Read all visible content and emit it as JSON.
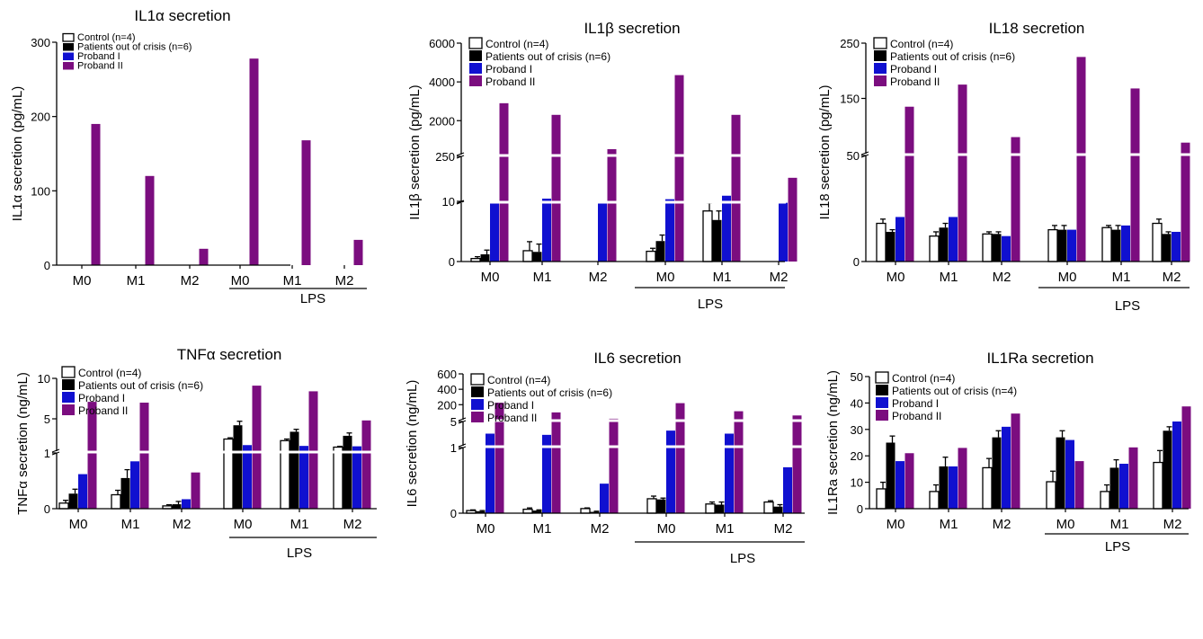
{
  "figure": {
    "colors": {
      "Control": "#ffffff",
      "Patients": "#000000",
      "Proband I": "#1010d0",
      "Proband II": "#7b0d7f"
    }
  },
  "chart_data": [
    {
      "id": "il1a",
      "type": "bar",
      "title": "IL1α secretion",
      "ylabel": "IL1α secretion (pg/mL)",
      "ylim": [
        0,
        300
      ],
      "yticks": [
        0,
        100,
        200,
        300
      ],
      "ytick_labels": [
        "0",
        "100",
        "200",
        "300"
      ],
      "categories": [
        "M0",
        "M1",
        "M2",
        "M0",
        "M1",
        "M2"
      ],
      "group_label": "LPS",
      "legend": [
        "Control (n=4)",
        "Patients out of crisis (n=6)",
        "Proband I",
        "Proband II"
      ],
      "series": [
        {
          "name": "Control (n=4)",
          "values": [
            0,
            0,
            0,
            0,
            0,
            0
          ],
          "errors": [
            0,
            0,
            0,
            0,
            0,
            0
          ]
        },
        {
          "name": "Patients out of crisis (n=6)",
          "values": [
            0,
            0,
            0,
            0,
            0,
            0
          ],
          "errors": [
            0,
            0,
            0,
            0,
            0,
            0
          ]
        },
        {
          "name": "Proband I",
          "values": [
            0,
            0,
            0,
            0,
            0,
            0
          ]
        },
        {
          "name": "Proband II",
          "values": [
            190,
            120,
            22,
            278,
            168,
            34
          ]
        }
      ]
    },
    {
      "id": "il1b",
      "type": "bar",
      "title": "IL1β secretion",
      "ylabel": "IL1β secretion (pg/mL)",
      "axis_breaks": [
        10,
        250
      ],
      "segments": [
        [
          0,
          10
        ],
        [
          10,
          250
        ],
        [
          250,
          6000
        ]
      ],
      "yticks": [
        0,
        10,
        250,
        2000,
        4000,
        6000
      ],
      "ytick_labels": [
        "0",
        "10",
        "250",
        "2000",
        "4000",
        "6000"
      ],
      "categories": [
        "M0",
        "M1",
        "M2",
        "M0",
        "M1",
        "M2"
      ],
      "group_label": "LPS",
      "legend": [
        "Control (n=4)",
        "Patients out of crisis (n=6)",
        "Proband I",
        "Proband II"
      ],
      "series": [
        {
          "name": "Control (n=4)",
          "values": [
            0.5,
            1.8,
            0,
            1.7,
            8.4,
            0
          ],
          "errors": [
            0.3,
            1.5,
            0,
            0.5,
            1.8,
            0
          ]
        },
        {
          "name": "Patients out of crisis (n=6)",
          "values": [
            1.2,
            1.6,
            0,
            3.4,
            6.9,
            0
          ],
          "errors": [
            0.7,
            1.3,
            0,
            1.0,
            1.5,
            0
          ]
        },
        {
          "name": "Proband I",
          "values": [
            14,
            33,
            12,
            30,
            48,
            11.5
          ]
        },
        {
          "name": "Proband II",
          "values": [
            2900,
            2300,
            530,
            4350,
            2300,
            140
          ]
        }
      ]
    },
    {
      "id": "il18",
      "type": "bar",
      "title": "IL18 secretion",
      "ylabel": "IL18 secretion (pg/mL)",
      "axis_breaks": [
        50
      ],
      "segments": [
        [
          0,
          50
        ],
        [
          50,
          250
        ]
      ],
      "yticks": [
        0,
        50,
        150,
        250
      ],
      "ytick_labels": [
        "0",
        "50",
        "150",
        "250"
      ],
      "categories": [
        "M0",
        "M1",
        "M2",
        "M0",
        "M1",
        "M2"
      ],
      "group_label": "LPS",
      "legend": [
        "Control (n=4)",
        "Patients out of crisis (n=6)",
        "Proband I",
        "Proband II"
      ],
      "series": [
        {
          "name": "Control (n=4)",
          "values": [
            18,
            12,
            13,
            15,
            16,
            18
          ],
          "errors": [
            2,
            2,
            1,
            2,
            1,
            2
          ]
        },
        {
          "name": "Patients out of crisis (n=6)",
          "values": [
            14,
            16,
            13,
            15,
            15,
            13
          ],
          "errors": [
            1,
            2,
            1,
            2,
            2,
            1
          ]
        },
        {
          "name": "Proband I",
          "values": [
            21,
            21,
            12,
            15,
            17,
            14
          ]
        },
        {
          "name": "Proband II",
          "values": [
            135,
            175,
            80,
            225,
            168,
            70
          ]
        }
      ]
    },
    {
      "id": "tnfa",
      "type": "bar",
      "title": "TNFα secretion",
      "ylabel": "TNFα secretion (ng/mL)",
      "axis_breaks": [
        1
      ],
      "segments": [
        [
          0,
          1
        ],
        [
          1,
          10
        ]
      ],
      "yticks": [
        0,
        1,
        5,
        10
      ],
      "ytick_labels": [
        "0",
        "1",
        "5",
        "10"
      ],
      "categories": [
        "M0",
        "M1",
        "M2",
        "M0",
        "M1",
        "M2"
      ],
      "group_label": "LPS",
      "legend": [
        "Control (n=4)",
        "Patients out of crisis (n=6)",
        "Proband I",
        "Proband II"
      ],
      "series": [
        {
          "name": "Control (n=4)",
          "values": [
            0.1,
            0.25,
            0.05,
            2.5,
            2.3,
            1.5
          ],
          "errors": [
            0.05,
            0.08,
            0.02,
            0.15,
            0.2,
            0.1
          ]
        },
        {
          "name": "Patients out of crisis (n=6)",
          "values": [
            0.27,
            0.55,
            0.08,
            4.2,
            3.4,
            2.9
          ],
          "errors": [
            0.08,
            0.15,
            0.05,
            0.5,
            0.3,
            0.35
          ]
        },
        {
          "name": "Proband I",
          "values": [
            0.62,
            0.85,
            0.17,
            1.75,
            1.65,
            1.6
          ]
        },
        {
          "name": "Proband II",
          "values": [
            7.1,
            7.0,
            0.65,
            9.1,
            8.4,
            4.8
          ]
        }
      ]
    },
    {
      "id": "il6",
      "type": "bar",
      "title": "IL6 secretion",
      "ylabel": "IL6 secretion (ng/mL)",
      "axis_breaks": [
        1,
        5
      ],
      "segments": [
        [
          0,
          1
        ],
        [
          1,
          5
        ],
        [
          5,
          600
        ]
      ],
      "yticks": [
        0,
        1,
        5,
        200,
        400,
        600
      ],
      "ytick_labels": [
        "0",
        "1",
        "5",
        "200",
        "400",
        "600"
      ],
      "categories": [
        "M0",
        "M1",
        "M2",
        "M0",
        "M1",
        "M2"
      ],
      "group_label": "LPS",
      "legend": [
        "Control (n=4)",
        "Patients out of crisis (n=6)",
        "Proband I",
        "Proband II"
      ],
      "series": [
        {
          "name": "Control (n=4)",
          "values": [
            0.04,
            0.06,
            0.07,
            0.22,
            0.14,
            0.17
          ],
          "errors": [
            0.01,
            0.02,
            0.01,
            0.04,
            0.03,
            0.02
          ]
        },
        {
          "name": "Patients out of crisis (n=6)",
          "values": [
            0.03,
            0.04,
            0.02,
            0.21,
            0.13,
            0.1
          ],
          "errors": [
            0.01,
            0.01,
            0.01,
            0.02,
            0.04,
            0.03
          ]
        },
        {
          "name": "Proband I",
          "values": [
            3.0,
            2.8,
            0.45,
            3.5,
            3.0,
            0.7
          ]
        },
        {
          "name": "Proband II",
          "values": [
            225,
            100,
            18,
            220,
            115,
            60
          ]
        }
      ]
    },
    {
      "id": "il1ra",
      "type": "bar",
      "title": "IL1Ra secretion",
      "ylabel": "IL1Ra secretion (ng/mL)",
      "ylim": [
        0,
        50
      ],
      "yticks": [
        0,
        10,
        20,
        30,
        40,
        50
      ],
      "ytick_labels": [
        "0",
        "10",
        "20",
        "30",
        "40",
        "50"
      ],
      "categories": [
        "M0",
        "M1",
        "M2",
        "M0",
        "M1",
        "M2"
      ],
      "group_label": "LPS",
      "legend": [
        "Control (n=4)",
        "Patients out of crisis (n=4)",
        "Proband I",
        "Proband II"
      ],
      "series": [
        {
          "name": "Control (n=4)",
          "values": [
            7.5,
            6.5,
            15.5,
            10.2,
            6.5,
            17.5
          ],
          "errors": [
            2.5,
            2.5,
            3.5,
            4.0,
            2.5,
            4.5
          ]
        },
        {
          "name": "Patients out of crisis (n=4)",
          "values": [
            25,
            16,
            27,
            27,
            15.5,
            29.5
          ],
          "errors": [
            2.5,
            3.5,
            2.5,
            2.5,
            3.0,
            1.5
          ]
        },
        {
          "name": "Proband I",
          "values": [
            18,
            16,
            31,
            26,
            17,
            33
          ]
        },
        {
          "name": "Proband II",
          "values": [
            21,
            23,
            36,
            18,
            23.2,
            38.7
          ]
        }
      ]
    }
  ]
}
